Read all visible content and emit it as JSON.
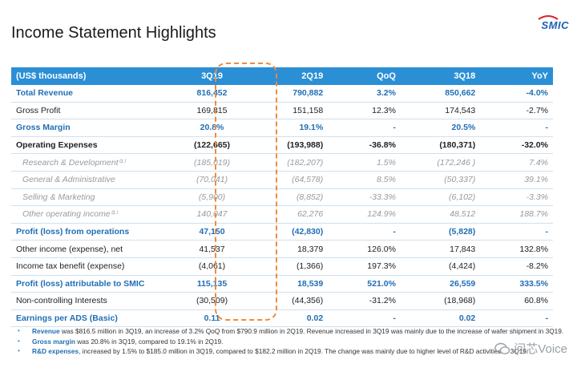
{
  "title": "Income Statement Highlights",
  "logo": {
    "text": "SMIC",
    "color": "#1f5fb0"
  },
  "table": {
    "headers": [
      "(US$ thousands)",
      "3Q19",
      "2Q19",
      "QoQ",
      "3Q18",
      "YoY"
    ],
    "rows": [
      {
        "style": "hl",
        "cells": [
          "Total Revenue",
          "816,452",
          "790,882",
          "3.2%",
          "850,662",
          "-4.0%"
        ]
      },
      {
        "style": "",
        "cells": [
          "Gross Profit",
          "169,815",
          "151,158",
          "12.3%",
          "174,543",
          "-2.7%"
        ]
      },
      {
        "style": "hl",
        "cells": [
          "Gross Margin",
          "20.8%",
          "19.1%",
          "-",
          "20.5%",
          "-"
        ]
      },
      {
        "style": "bold",
        "cells": [
          "Operating Expenses",
          "(122,665)",
          "(193,988)",
          "-36.8%",
          "(180,371)",
          "-32.0%"
        ]
      },
      {
        "style": "sub",
        "cells": [
          "Research & Development⁽¹⁾",
          "(185,019)",
          "(182,207)",
          "1.5%",
          "(172,246 )",
          "7.4%"
        ]
      },
      {
        "style": "sub",
        "cells": [
          "General & Administrative",
          "(70,041)",
          "(64,578)",
          "8.5%",
          "(50,337)",
          "39.1%"
        ]
      },
      {
        "style": "sub",
        "cells": [
          "Selling & Marketing",
          "(5,900)",
          "(8,852)",
          "-33.3%",
          "(6,102)",
          "-3.3%"
        ]
      },
      {
        "style": "sub",
        "cells": [
          "Other operating income⁽¹⁾",
          "140,047",
          "62,276",
          "124.9%",
          "48,512",
          "188.7%"
        ]
      },
      {
        "style": "hl",
        "cells": [
          "Profit (loss) from operations",
          "47,150",
          "(42,830)",
          "-",
          "(5,828)",
          "-"
        ]
      },
      {
        "style": "",
        "cells": [
          "Other income (expense), net",
          "41,537",
          "18,379",
          "126.0%",
          "17,843",
          "132.8%"
        ]
      },
      {
        "style": "",
        "cells": [
          "Income tax benefit (expense)",
          "(4,061)",
          "(1,366)",
          "197.3%",
          "(4,424)",
          "-8.2%"
        ]
      },
      {
        "style": "hl",
        "cells": [
          "Profit (loss) attributable to SMIC",
          "115,135",
          "18,539",
          "521.0%",
          "26,559",
          "333.5%"
        ]
      },
      {
        "style": "",
        "cells": [
          "Non-controlling Interests",
          "(30,509)",
          "(44,356)",
          "-31.2%",
          "(18,968)",
          "60.8%"
        ]
      },
      {
        "style": "hl",
        "cells": [
          "Earnings per ADS (Basic)",
          "0.11",
          "0.02",
          "-",
          "0.02",
          "-"
        ]
      }
    ]
  },
  "notes": [
    {
      "key": "Revenue",
      "text": " was $816.5 million in 3Q19, an increase of 3.2% QoQ from $790.9 million in 2Q19. Revenue increased in 3Q19  was mainly due to the increase of wafer shipment in 3Q19."
    },
    {
      "key": "Gross margin",
      "text": " was 20.8% in 3Q19, compared to 19.1% in 2Q19."
    },
    {
      "key": "R&D expenses",
      "text": ", increased by 1.5% to $185.0 million in 3Q19, compared to $182.2 million in 2Q19. The change was mainly due to higher level of R&D activities in 3Q19."
    }
  ],
  "watermark": "问芯Voice",
  "colors": {
    "header_bg": "#2b8fd6",
    "accent": "#1f6eb5",
    "highlight_box": "#f08a3a"
  }
}
